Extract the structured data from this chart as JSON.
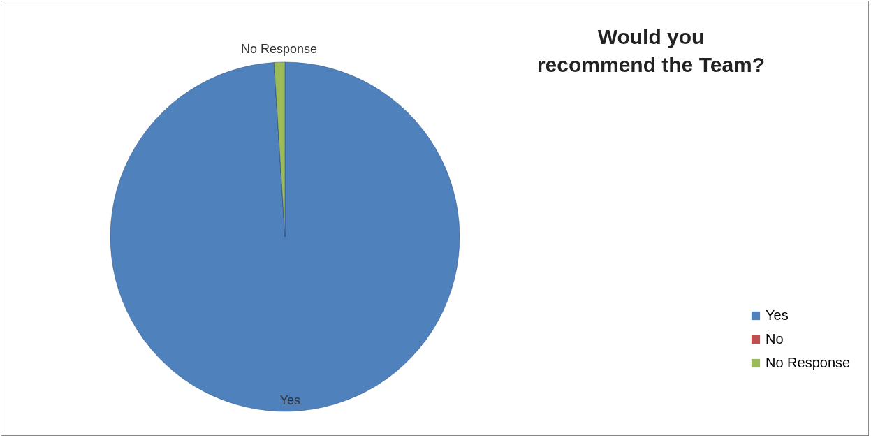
{
  "chart_data": {
    "type": "pie",
    "title": "Would you recommend the Team?",
    "categories": [
      "Yes",
      "No",
      "No Response"
    ],
    "values": [
      99,
      0,
      1
    ],
    "colors": [
      "#4f81bd",
      "#c0504d",
      "#9bbb59"
    ],
    "legend": "bottom right"
  }
}
